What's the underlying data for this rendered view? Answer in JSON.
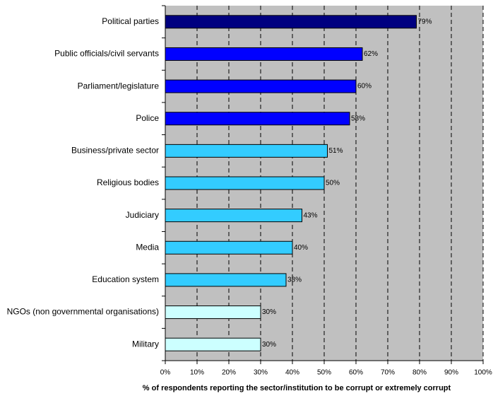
{
  "chart_data": {
    "type": "bar",
    "orientation": "horizontal",
    "x_axis_label": "% of respondents reporting the sector/institution to be corrupt or extremely corrupt",
    "categories": [
      "Political parties",
      "Public officials/civil servants",
      "Parliament/legislature",
      "Police",
      "Business/private sector",
      "Religious bodies",
      "Judiciary",
      "Media",
      "Education system",
      "NGOs (non governmental organisations)",
      "Military"
    ],
    "values": [
      79,
      62,
      60,
      58,
      51,
      50,
      43,
      40,
      38,
      30,
      30
    ],
    "value_labels": [
      "79%",
      "62%",
      "60%",
      "58%",
      "51%",
      "50%",
      "43%",
      "40%",
      "38%",
      "30%",
      "30%"
    ],
    "colors": [
      "#000080",
      "#0000ff",
      "#0000ff",
      "#0000ff",
      "#33ccff",
      "#33ccff",
      "#33ccff",
      "#33ccff",
      "#33ccff",
      "#ccffff",
      "#ccffff"
    ],
    "xlim": [
      0,
      100
    ],
    "xticks": [
      {
        "value": 0,
        "label": "0%"
      },
      {
        "value": 10,
        "label": "10%"
      },
      {
        "value": 20,
        "label": "20%"
      },
      {
        "value": 30,
        "label": "30%"
      },
      {
        "value": 40,
        "label": "40%"
      },
      {
        "value": 50,
        "label": "50%"
      },
      {
        "value": 60,
        "label": "60%"
      },
      {
        "value": 70,
        "label": "70%"
      },
      {
        "value": 80,
        "label": "80%"
      },
      {
        "value": 90,
        "label": "90%"
      },
      {
        "value": 100,
        "label": "100%"
      }
    ],
    "grid": true,
    "background": "#c0c0c0"
  }
}
